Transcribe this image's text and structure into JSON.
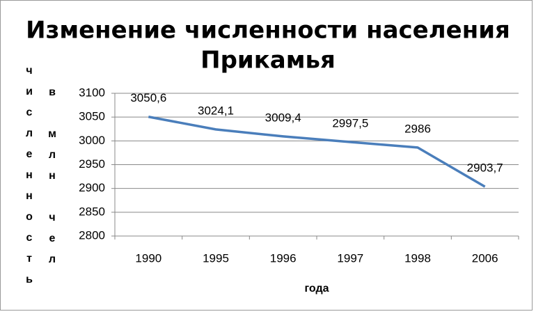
{
  "chart_data": {
    "type": "line",
    "title": "Изменение численности населения",
    "title_line_2": "Прикамья",
    "y_label_lines": [
      "численность",
      "в млн чел"
    ],
    "x_label": "года",
    "categories": [
      "1990",
      "1995",
      "1996",
      "1997",
      "1998",
      "2006"
    ],
    "values": [
      3050.6,
      3024.1,
      3009.4,
      2997.5,
      2986,
      2903.7
    ],
    "value_labels": [
      "3050,6",
      "3024,1",
      "3009,4",
      "2997,5",
      "2986",
      "2903,7"
    ],
    "color": "#4a7ebb",
    "ylim": [
      2800,
      3100
    ],
    "yticks": [
      2800,
      2850,
      2900,
      2950,
      3000,
      3050,
      3100
    ],
    "grid": true
  }
}
